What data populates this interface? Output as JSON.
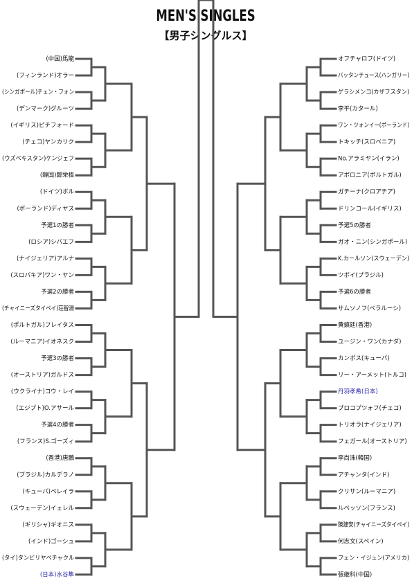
{
  "header": {
    "title": "MEN'S SINGLES",
    "subtitle": "【男子シングルス】"
  },
  "left_players": [
    {
      "name": "(中国)馬龍"
    },
    {
      "name": "(フィンランド)オラー"
    },
    {
      "name": "(シンガポール)チェン・フォン"
    },
    {
      "name": "(デンマーク)グルーツ"
    },
    {
      "name": "(イギリス)ピチフォード"
    },
    {
      "name": "(チェコ)ヤンカリク"
    },
    {
      "name": "(ウズベキスタン)ケンジェフ"
    },
    {
      "name": "(韓国)鄭栄植"
    },
    {
      "name": "(ドイツ)ボル"
    },
    {
      "name": "(ポーランド)ディヤス"
    },
    {
      "name": "予選1の勝者"
    },
    {
      "name": "(ロシア)シバエフ"
    },
    {
      "name": "(ナイジェリア)アルナ"
    },
    {
      "name": "(スロバキア)ワン・ヤン"
    },
    {
      "name": "予選2の勝者"
    },
    {
      "name": "(チャイニーズタイペイ)荘智淵"
    },
    {
      "name": "(ポルトガル)フレイタス"
    },
    {
      "name": "(ルーマニア)イオネスク"
    },
    {
      "name": "予選3の勝者"
    },
    {
      "name": "(オーストリア)ガルドス"
    },
    {
      "name": "(ウクライナ)コウ・レイ"
    },
    {
      "name": "(エジプト)O.アサール"
    },
    {
      "name": "予選4の勝者"
    },
    {
      "name": "(フランス)S.ゴーズィ"
    },
    {
      "name": "(香港)唐鵬"
    },
    {
      "name": "(ブラジル)カルデラノ"
    },
    {
      "name": "(キューバ)ペレイラ"
    },
    {
      "name": "(スウェーデン)イェレル"
    },
    {
      "name": "(ギリシャ)ギオニス"
    },
    {
      "name": "(インド)ゴーシュ"
    },
    {
      "name": "(タイ)タンビリヤベチャクル"
    },
    {
      "name": "(日本)水谷隼",
      "color": "#2a2aa8"
    }
  ],
  "right_players": [
    {
      "name": "オフチャロフ(ドイツ)"
    },
    {
      "name": "バッタンチュース(ハンガリー)"
    },
    {
      "name": "ゲラシメンコ(カザフスタン)"
    },
    {
      "name": "李平(カタール)"
    },
    {
      "name": "ワン・ツォンイー(ポーランド)"
    },
    {
      "name": "トキッチ(スロベニア)"
    },
    {
      "name": "No.アラミヤン(イラン)"
    },
    {
      "name": "アポロニア(ポルトガル)"
    },
    {
      "name": "ガチーナ(クロアチア)"
    },
    {
      "name": "ドリンコール(イギリス)"
    },
    {
      "name": "予選5の勝者"
    },
    {
      "name": "ガオ・ニン(シンガポール)"
    },
    {
      "name": "K.カールソン(スウェーデン)"
    },
    {
      "name": "ツボイ(ブラジル)"
    },
    {
      "name": "予選6の勝者"
    },
    {
      "name": "サムソノフ(ベラルーシ)"
    },
    {
      "name": "黄鎮廷(香港)"
    },
    {
      "name": "ユージン・ワン(カナダ)"
    },
    {
      "name": "カンポス(キューバ)"
    },
    {
      "name": "リー・アーメット(トルコ)"
    },
    {
      "name": "丹羽孝希(日本)",
      "color": "#2a2aa8"
    },
    {
      "name": "ブロコプツォフ(チェコ)"
    },
    {
      "name": "トリオラ(ナイジェリア)"
    },
    {
      "name": "フェガール(オーストリア)"
    },
    {
      "name": "李尚洙(韓国)"
    },
    {
      "name": "アチャンタ(インド)"
    },
    {
      "name": "クリサン(ルーマニア)"
    },
    {
      "name": "ルペッソン(フランス)"
    },
    {
      "name": "陳建安(チャイニーズタイペイ)"
    },
    {
      "name": "何志文(スペイン)"
    },
    {
      "name": "フェン・イジュン(アメリカ)"
    },
    {
      "name": "張継科(中国)"
    }
  ]
}
